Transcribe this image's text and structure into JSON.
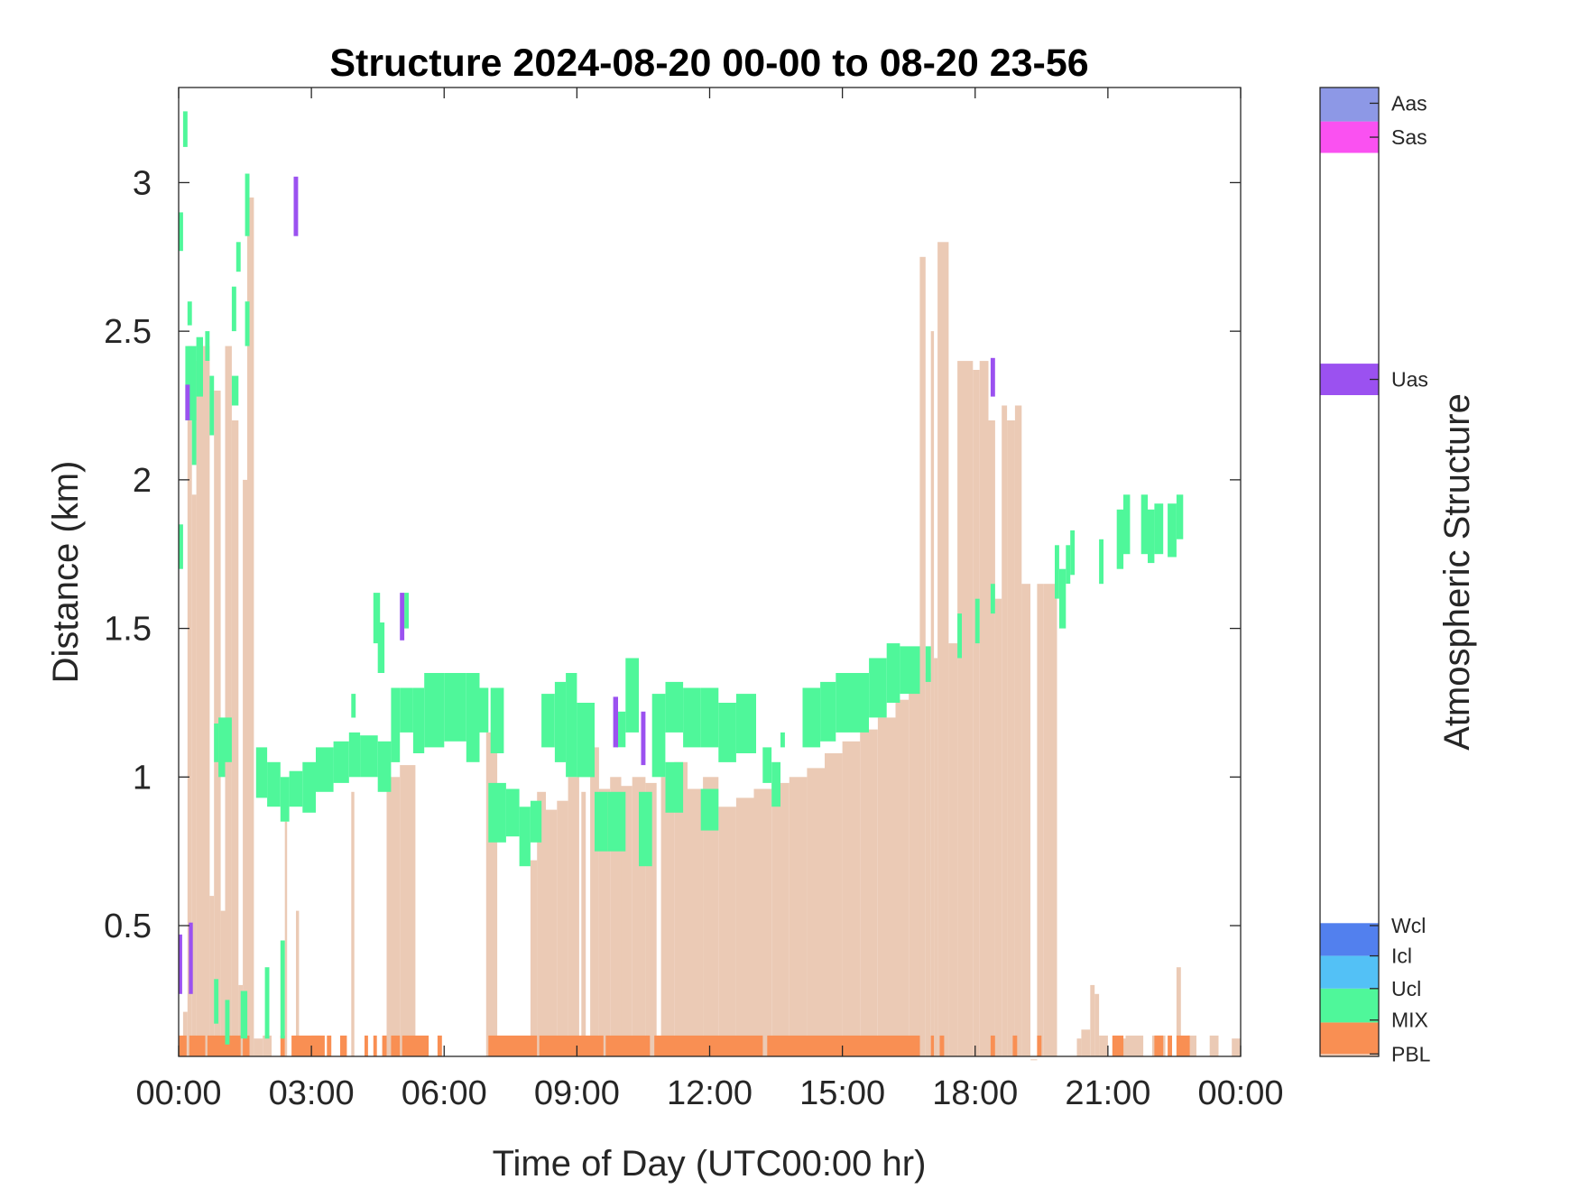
{
  "chart_data": {
    "type": "heatmap",
    "title": "Structure 2024-08-20 00-00 to 08-20 23-56",
    "xlabel": "Time of Day (UTC00:00 hr)",
    "ylabel": "Distance (km)",
    "xlim": [
      0,
      24
    ],
    "ylim": [
      0.06,
      3.32
    ],
    "x_ticks": [
      0,
      3,
      6,
      9,
      12,
      15,
      18,
      21,
      24
    ],
    "x_tick_labels": [
      "00:00",
      "03:00",
      "06:00",
      "09:00",
      "12:00",
      "15:00",
      "18:00",
      "21:00",
      "00:00"
    ],
    "y_ticks": [
      0.5,
      1,
      1.5,
      2,
      2.5,
      3
    ],
    "y_tick_labels": [
      "0.5",
      "1",
      "1.5",
      "2",
      "2.5",
      "3"
    ],
    "grid": false,
    "colorbar": {
      "label": "Atmospheric Structure",
      "classes": [
        {
          "name": "PBL",
          "color": "#ebcab5"
        },
        {
          "name": "MIX",
          "color": "#f98f53"
        },
        {
          "name": "Ucl",
          "color": "#4ff79a"
        },
        {
          "name": "Icl",
          "color": "#53c1f6"
        },
        {
          "name": "Wcl",
          "color": "#5280ee"
        },
        {
          "name": "Uas",
          "color": "#9b51f0"
        },
        {
          "name": "Sas",
          "color": "#fa51f1"
        },
        {
          "name": "Aas",
          "color": "#8d98e6"
        }
      ]
    },
    "pbl_profile": [
      [
        0.0,
        0.1,
        0.09
      ],
      [
        0.1,
        0.2,
        0.21
      ],
      [
        0.2,
        0.3,
        2.45
      ],
      [
        0.3,
        0.4,
        1.95
      ],
      [
        0.4,
        0.55,
        2.4
      ],
      [
        0.55,
        0.7,
        2.45
      ],
      [
        0.7,
        0.8,
        0.6
      ],
      [
        0.8,
        0.95,
        2.3
      ],
      [
        0.95,
        1.05,
        0.55
      ],
      [
        1.05,
        1.2,
        2.45
      ],
      [
        1.2,
        1.35,
        2.2
      ],
      [
        1.35,
        1.45,
        0.3
      ],
      [
        1.45,
        1.55,
        2.0
      ],
      [
        1.55,
        1.7,
        2.95
      ],
      [
        1.7,
        1.9,
        0.12
      ],
      [
        1.9,
        2.1,
        0.13
      ],
      [
        2.4,
        2.45,
        0.85
      ],
      [
        2.65,
        2.72,
        0.55
      ],
      [
        3.0,
        3.2,
        0.13
      ],
      [
        3.9,
        3.97,
        0.95
      ],
      [
        4.7,
        5.0,
        1.0
      ],
      [
        5.0,
        5.35,
        1.04
      ],
      [
        6.95,
        7.2,
        1.15
      ],
      [
        7.95,
        8.1,
        0.72
      ],
      [
        8.1,
        8.3,
        0.95
      ],
      [
        8.3,
        8.55,
        0.89
      ],
      [
        8.55,
        8.8,
        0.92
      ],
      [
        8.8,
        9.05,
        1.0
      ],
      [
        9.1,
        9.2,
        0.95
      ],
      [
        9.3,
        9.5,
        1.1
      ],
      [
        9.5,
        9.75,
        0.96
      ],
      [
        9.75,
        10.0,
        1.0
      ],
      [
        10.0,
        10.25,
        0.97
      ],
      [
        10.25,
        10.55,
        1.0
      ],
      [
        10.55,
        10.8,
        0.98
      ],
      [
        10.9,
        11.2,
        1.0
      ],
      [
        11.2,
        11.5,
        1.05
      ],
      [
        11.5,
        11.85,
        0.96
      ],
      [
        11.85,
        12.2,
        1.0
      ],
      [
        12.2,
        12.6,
        0.9
      ],
      [
        12.6,
        13.0,
        0.93
      ],
      [
        13.0,
        13.4,
        0.96
      ],
      [
        13.4,
        13.8,
        0.98
      ],
      [
        13.8,
        14.2,
        1.0
      ],
      [
        14.2,
        14.6,
        1.03
      ],
      [
        14.6,
        15.0,
        1.08
      ],
      [
        15.0,
        15.4,
        1.12
      ],
      [
        15.4,
        15.8,
        1.16
      ],
      [
        15.8,
        16.2,
        1.2
      ],
      [
        16.2,
        16.5,
        1.26
      ],
      [
        16.5,
        16.75,
        1.3
      ],
      [
        16.75,
        16.88,
        2.75
      ],
      [
        16.88,
        17.0,
        1.35
      ],
      [
        17.0,
        17.07,
        2.5
      ],
      [
        17.07,
        17.15,
        1.4
      ],
      [
        17.15,
        17.4,
        2.8
      ],
      [
        17.4,
        17.6,
        1.45
      ],
      [
        17.6,
        17.95,
        2.4
      ],
      [
        17.95,
        18.1,
        2.37
      ],
      [
        18.1,
        18.3,
        2.4
      ],
      [
        18.3,
        18.45,
        2.2
      ],
      [
        18.45,
        18.6,
        1.6
      ],
      [
        18.6,
        18.72,
        2.25
      ],
      [
        18.72,
        18.9,
        2.2
      ],
      [
        18.9,
        19.05,
        2.25
      ],
      [
        19.05,
        19.25,
        1.65
      ],
      [
        19.25,
        19.4,
        0.05
      ],
      [
        19.4,
        19.55,
        1.65
      ],
      [
        19.55,
        19.85,
        1.65
      ],
      [
        20.3,
        20.4,
        0.12
      ],
      [
        20.4,
        20.6,
        0.15
      ],
      [
        20.6,
        20.7,
        0.3
      ],
      [
        20.7,
        20.8,
        0.27
      ],
      [
        20.8,
        21.0,
        0.13
      ],
      [
        21.2,
        21.4,
        0.12
      ],
      [
        21.4,
        21.8,
        0.13
      ],
      [
        22.0,
        22.3,
        0.13
      ],
      [
        22.55,
        22.65,
        0.36
      ],
      [
        22.8,
        23.0,
        0.13
      ],
      [
        23.3,
        23.5,
        0.13
      ],
      [
        23.8,
        24.0,
        0.12
      ]
    ],
    "mix_layer": {
      "y_range": [
        0.06,
        0.13
      ],
      "segments": [
        [
          0.0,
          0.18
        ],
        [
          0.24,
          0.6
        ],
        [
          0.65,
          1.4
        ],
        [
          1.45,
          1.6
        ],
        [
          2.3,
          2.4
        ],
        [
          2.55,
          3.3
        ],
        [
          3.35,
          3.45
        ],
        [
          3.65,
          3.8
        ],
        [
          4.2,
          4.28
        ],
        [
          4.4,
          4.48
        ],
        [
          4.6,
          4.7
        ],
        [
          4.8,
          5.0
        ],
        [
          5.05,
          5.65
        ],
        [
          5.85,
          5.95
        ],
        [
          7.0,
          8.1
        ],
        [
          8.15,
          9.6
        ],
        [
          9.65,
          10.65
        ],
        [
          10.75,
          13.2
        ],
        [
          13.3,
          16.75
        ],
        [
          17.0,
          17.07
        ],
        [
          17.2,
          17.3
        ],
        [
          18.35,
          18.45
        ],
        [
          18.85,
          18.95
        ],
        [
          19.4,
          19.5
        ],
        [
          21.1,
          21.35
        ],
        [
          22.05,
          22.25
        ],
        [
          22.35,
          22.45
        ],
        [
          22.55,
          22.85
        ]
      ]
    },
    "ucl_cells": [
      [
        0.0,
        0.1,
        2.77,
        2.9
      ],
      [
        0.0,
        0.1,
        1.7,
        1.85
      ],
      [
        0.1,
        0.2,
        3.12,
        3.24
      ],
      [
        0.2,
        0.3,
        2.52,
        2.6
      ],
      [
        0.15,
        0.4,
        2.2,
        2.45
      ],
      [
        0.3,
        0.4,
        2.05,
        2.2
      ],
      [
        0.4,
        0.55,
        2.28,
        2.48
      ],
      [
        0.6,
        0.7,
        2.4,
        2.5
      ],
      [
        0.7,
        0.8,
        2.15,
        2.35
      ],
      [
        0.8,
        0.9,
        1.05,
        1.18
      ],
      [
        0.9,
        1.05,
        1.0,
        1.2
      ],
      [
        1.05,
        1.2,
        1.05,
        1.2
      ],
      [
        1.2,
        1.3,
        2.5,
        2.65
      ],
      [
        1.3,
        1.4,
        2.7,
        2.8
      ],
      [
        1.2,
        1.35,
        2.25,
        2.35
      ],
      [
        1.5,
        1.6,
        2.82,
        3.03
      ],
      [
        1.5,
        1.6,
        2.45,
        2.6
      ],
      [
        0.8,
        0.9,
        0.17,
        0.32
      ],
      [
        1.05,
        1.15,
        0.1,
        0.25
      ],
      [
        1.4,
        1.55,
        0.12,
        0.28
      ],
      [
        1.95,
        2.05,
        0.12,
        0.36
      ],
      [
        2.3,
        2.4,
        0.12,
        0.45
      ],
      [
        1.75,
        2.0,
        0.93,
        1.1
      ],
      [
        2.0,
        2.3,
        0.9,
        1.05
      ],
      [
        2.3,
        2.5,
        0.85,
        1.0
      ],
      [
        2.5,
        2.8,
        0.9,
        1.02
      ],
      [
        2.8,
        3.1,
        0.88,
        1.05
      ],
      [
        3.1,
        3.5,
        0.95,
        1.1
      ],
      [
        3.5,
        3.85,
        0.98,
        1.12
      ],
      [
        3.85,
        4.1,
        1.0,
        1.15
      ],
      [
        3.9,
        4.0,
        1.2,
        1.28
      ],
      [
        4.1,
        4.5,
        1.0,
        1.14
      ],
      [
        4.5,
        4.8,
        0.95,
        1.12
      ],
      [
        4.4,
        4.55,
        1.45,
        1.62
      ],
      [
        4.5,
        4.65,
        1.35,
        1.52
      ],
      [
        4.8,
        5.0,
        1.05,
        1.3
      ],
      [
        5.1,
        5.2,
        1.5,
        1.62
      ],
      [
        5.0,
        5.3,
        1.15,
        1.3
      ],
      [
        5.3,
        5.55,
        1.08,
        1.3
      ],
      [
        5.55,
        6.0,
        1.1,
        1.35
      ],
      [
        6.0,
        6.5,
        1.12,
        1.35
      ],
      [
        6.5,
        6.8,
        1.05,
        1.35
      ],
      [
        6.8,
        7.0,
        1.15,
        1.3
      ],
      [
        7.05,
        7.35,
        1.08,
        1.3
      ],
      [
        7.0,
        7.4,
        0.78,
        0.98
      ],
      [
        7.4,
        7.7,
        0.8,
        0.96
      ],
      [
        7.7,
        7.95,
        0.7,
        0.9
      ],
      [
        7.95,
        8.2,
        0.78,
        0.92
      ],
      [
        8.2,
        8.5,
        1.1,
        1.28
      ],
      [
        8.5,
        8.75,
        1.05,
        1.32
      ],
      [
        8.75,
        9.0,
        1.0,
        1.35
      ],
      [
        9.0,
        9.4,
        1.0,
        1.25
      ],
      [
        9.4,
        9.7,
        0.75,
        0.95
      ],
      [
        9.7,
        10.1,
        0.75,
        0.95
      ],
      [
        9.9,
        10.1,
        1.1,
        1.22
      ],
      [
        10.1,
        10.4,
        1.15,
        1.4
      ],
      [
        10.4,
        10.7,
        0.7,
        0.95
      ],
      [
        10.7,
        11.0,
        1.0,
        1.28
      ],
      [
        11.0,
        11.4,
        0.88,
        1.05
      ],
      [
        11.0,
        11.4,
        1.15,
        1.32
      ],
      [
        11.4,
        11.8,
        1.1,
        1.3
      ],
      [
        11.8,
        12.2,
        0.82,
        0.96
      ],
      [
        11.8,
        12.2,
        1.1,
        1.3
      ],
      [
        12.2,
        12.6,
        1.05,
        1.25
      ],
      [
        12.6,
        13.05,
        1.08,
        1.28
      ],
      [
        13.2,
        13.4,
        0.98,
        1.1
      ],
      [
        13.4,
        13.6,
        0.9,
        1.05
      ],
      [
        13.6,
        13.7,
        1.1,
        1.15
      ],
      [
        14.1,
        14.5,
        1.1,
        1.3
      ],
      [
        14.5,
        14.85,
        1.12,
        1.32
      ],
      [
        14.85,
        15.2,
        1.15,
        1.35
      ],
      [
        15.2,
        15.6,
        1.15,
        1.35
      ],
      [
        15.6,
        16.0,
        1.2,
        1.4
      ],
      [
        16.0,
        16.3,
        1.25,
        1.45
      ],
      [
        16.3,
        16.75,
        1.28,
        1.44
      ],
      [
        16.88,
        17.0,
        1.32,
        1.44
      ],
      [
        17.6,
        17.7,
        1.4,
        1.55
      ],
      [
        18.0,
        18.1,
        1.45,
        1.6
      ],
      [
        18.35,
        18.45,
        1.55,
        1.65
      ],
      [
        19.8,
        19.9,
        1.6,
        1.78
      ],
      [
        19.9,
        20.05,
        1.5,
        1.7
      ],
      [
        20.05,
        20.15,
        1.65,
        1.78
      ],
      [
        20.15,
        20.25,
        1.68,
        1.83
      ],
      [
        20.8,
        20.9,
        1.65,
        1.8
      ],
      [
        21.2,
        21.35,
        1.7,
        1.9
      ],
      [
        21.35,
        21.5,
        1.75,
        1.95
      ],
      [
        21.75,
        21.9,
        1.75,
        1.95
      ],
      [
        21.9,
        22.05,
        1.72,
        1.9
      ],
      [
        22.05,
        22.25,
        1.75,
        1.92
      ],
      [
        22.35,
        22.55,
        1.74,
        1.92
      ],
      [
        22.55,
        22.7,
        1.8,
        1.95
      ]
    ],
    "uas_cells": [
      [
        0.0,
        0.08,
        0.27,
        0.47
      ],
      [
        0.15,
        0.25,
        2.2,
        2.32
      ],
      [
        0.23,
        0.32,
        0.27,
        0.51
      ],
      [
        2.6,
        2.7,
        2.82,
        3.02
      ],
      [
        5.0,
        5.1,
        1.46,
        1.62
      ],
      [
        9.82,
        9.93,
        1.1,
        1.27
      ],
      [
        10.45,
        10.55,
        1.04,
        1.22
      ],
      [
        18.35,
        18.45,
        2.28,
        2.41
      ]
    ]
  }
}
